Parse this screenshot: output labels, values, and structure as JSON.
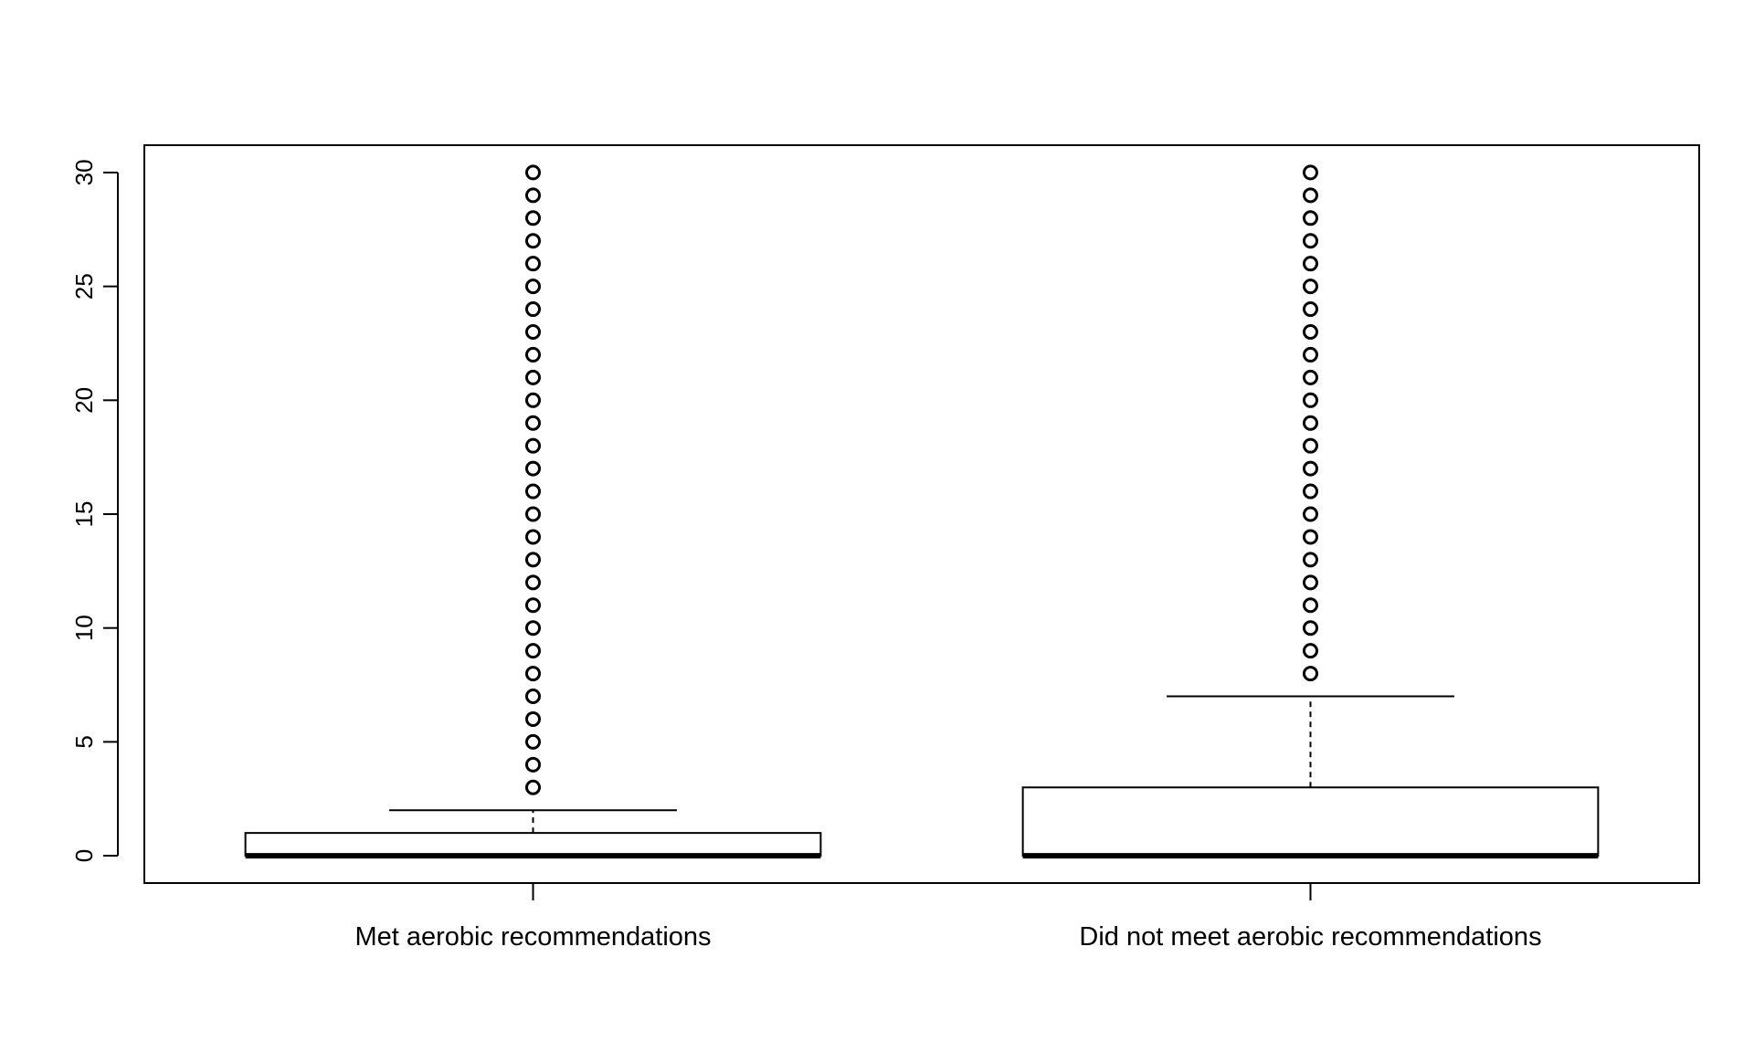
{
  "chart_data": {
    "type": "boxplot",
    "title": "",
    "xlabel": "",
    "ylabel": "",
    "ylim": [
      -1.2,
      31.2
    ],
    "yticks": [
      0,
      5,
      10,
      15,
      20,
      25,
      30
    ],
    "grid": false,
    "legend": "none",
    "categories": [
      "Met aerobic recommendations",
      "Did not meet aerobic recommendations"
    ],
    "boxes": [
      {
        "min": 0,
        "q1": 0,
        "median": 0,
        "q3": 1,
        "max": 2,
        "outliers": [
          3,
          4,
          5,
          6,
          7,
          8,
          9,
          10,
          11,
          12,
          13,
          14,
          15,
          16,
          17,
          18,
          19,
          20,
          21,
          22,
          23,
          24,
          25,
          26,
          27,
          28,
          29,
          30
        ]
      },
      {
        "min": 0,
        "q1": 0,
        "median": 0,
        "q3": 3,
        "max": 7,
        "outliers": [
          8,
          9,
          10,
          11,
          12,
          13,
          14,
          15,
          16,
          17,
          18,
          19,
          20,
          21,
          22,
          23,
          24,
          25,
          26,
          27,
          28,
          29,
          30
        ]
      }
    ],
    "colors": {
      "stroke": "#000000",
      "fill": "#ffffff"
    }
  }
}
